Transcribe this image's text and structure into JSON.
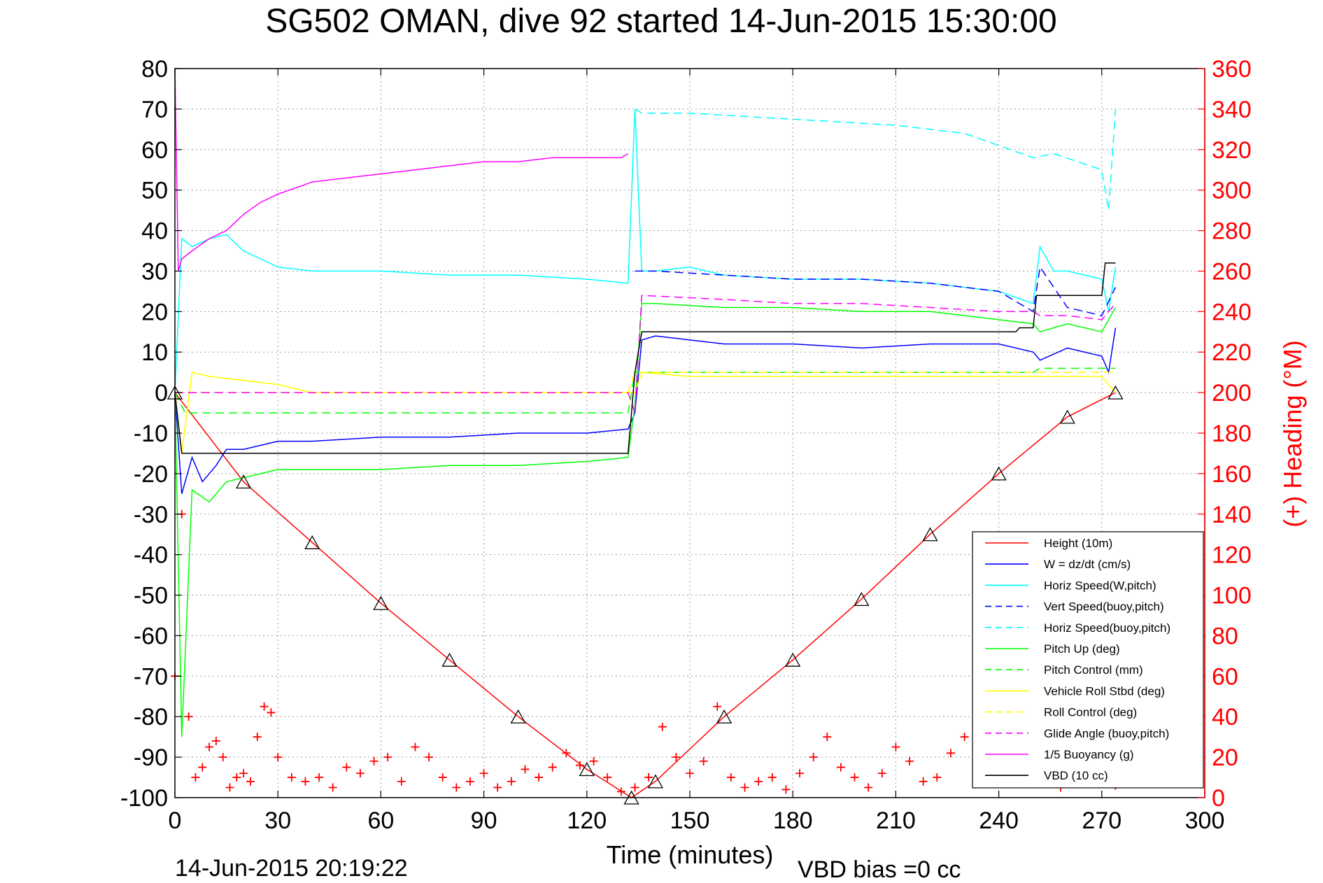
{
  "chart_data": {
    "type": "line",
    "title": "SG502 OMAN, dive 92 started 14-Jun-2015 15:30:00",
    "xlabel": "Time (minutes)",
    "ylabel": "",
    "y2label": "(+) Heading (°M)",
    "xlim": [
      0,
      300
    ],
    "ylim": [
      -100,
      80
    ],
    "y2lim": [
      0,
      360
    ],
    "xticks": [
      "0",
      "30",
      "60",
      "90",
      "120",
      "150",
      "180",
      "210",
      "240",
      "270",
      "300"
    ],
    "yticks": [
      "80",
      "70",
      "60",
      "50",
      "40",
      "30",
      "20",
      "10",
      "0",
      "-10",
      "-20",
      "-30",
      "-40",
      "-50",
      "-60",
      "-70",
      "-80",
      "-90",
      "-100"
    ],
    "y2ticks": [
      "360",
      "340",
      "320",
      "300",
      "280",
      "260",
      "240",
      "220",
      "200",
      "180",
      "160",
      "140",
      "120",
      "100",
      "80",
      "60",
      "40",
      "20",
      "0"
    ],
    "grid": true,
    "legend_position": "bottom-right",
    "footer_left": "14-Jun-2015 20:19:22",
    "footer_right": "VBD bias =0 cc",
    "series": [
      {
        "name": "Height (10m)",
        "color": "#ff0000",
        "style": "solid",
        "x": [
          0,
          20,
          40,
          60,
          80,
          100,
          120,
          133,
          140,
          160,
          180,
          200,
          220,
          240,
          260,
          274
        ],
        "y": [
          0,
          -22,
          -37,
          -52,
          -66,
          -80,
          -93,
          -100,
          -96,
          -80,
          -66,
          -51,
          -35,
          -20,
          -6,
          0
        ]
      },
      {
        "name": "W = dz/dt (cm/s)",
        "color": "#0000ff",
        "style": "solid",
        "x": [
          0,
          2,
          5,
          8,
          12,
          15,
          20,
          30,
          40,
          60,
          80,
          100,
          120,
          132,
          134,
          136,
          140,
          150,
          160,
          180,
          200,
          220,
          240,
          250,
          252,
          260,
          270,
          272,
          274
        ],
        "y": [
          0,
          -25,
          -16,
          -22,
          -18,
          -14,
          -14,
          -12,
          -12,
          -11,
          -11,
          -10,
          -10,
          -9,
          -5,
          13,
          14,
          13,
          12,
          12,
          11,
          12,
          12,
          10,
          8,
          11,
          9,
          5,
          16
        ]
      },
      {
        "name": "Horiz Speed(W,pitch)",
        "color": "#00ffff",
        "style": "solid",
        "x": [
          0,
          2,
          5,
          10,
          15,
          20,
          30,
          40,
          60,
          80,
          100,
          120,
          132,
          134,
          136,
          140,
          150,
          160,
          180,
          200,
          220,
          240,
          250,
          252,
          256,
          260,
          270,
          272,
          274
        ],
        "y": [
          0,
          38,
          36,
          38,
          39,
          35,
          31,
          30,
          30,
          29,
          29,
          28,
          27,
          70,
          30,
          30,
          31,
          29,
          28,
          28,
          27,
          25,
          22,
          36,
          30,
          30,
          28,
          20,
          31
        ]
      },
      {
        "name": "Vert Speed(buoy,pitch)",
        "color": "#0000ff",
        "style": "dashed",
        "x": [
          134,
          140,
          160,
          180,
          200,
          220,
          240,
          250,
          252,
          260,
          270,
          274
        ],
        "y": [
          30,
          30,
          29,
          28,
          28,
          27,
          25,
          20,
          31,
          21,
          19,
          26
        ]
      },
      {
        "name": "Horiz Speed(buoy,pitch)",
        "color": "#00ffff",
        "style": "dashed",
        "x": [
          134,
          136,
          150,
          170,
          190,
          210,
          230,
          240,
          250,
          256,
          270,
          272,
          274
        ],
        "y": [
          70,
          69,
          69,
          68,
          67,
          66,
          64,
          61,
          58,
          59,
          55,
          45,
          70
        ]
      },
      {
        "name": "Pitch Up (deg)",
        "color": "#00ff00",
        "style": "solid",
        "x": [
          0,
          2,
          5,
          10,
          15,
          20,
          30,
          40,
          60,
          80,
          100,
          120,
          132,
          134,
          136,
          140,
          160,
          180,
          200,
          220,
          240,
          250,
          252,
          260,
          270,
          274
        ],
        "y": [
          0,
          -85,
          -24,
          -27,
          -22,
          -21,
          -19,
          -19,
          -19,
          -18,
          -18,
          -17,
          -16,
          -3,
          22,
          22,
          21,
          21,
          20,
          20,
          18,
          17,
          15,
          17,
          15,
          21
        ]
      },
      {
        "name": "Pitch Control (mm)",
        "color": "#00ff00",
        "style": "dashed",
        "x": [
          0,
          3,
          132,
          134,
          250,
          252,
          274
        ],
        "y": [
          0,
          -5,
          -5,
          5,
          5,
          6,
          6
        ]
      },
      {
        "name": "Vehicle Roll Stbd (deg)",
        "color": "#ffff00",
        "style": "solid",
        "x": [
          0,
          2,
          5,
          10,
          20,
          30,
          40,
          60,
          80,
          100,
          120,
          132,
          134,
          136,
          150,
          170,
          190,
          210,
          230,
          250,
          270,
          274
        ],
        "y": [
          0,
          -15,
          5,
          4,
          3,
          2,
          0,
          0,
          0,
          0,
          0,
          0,
          0,
          5,
          4,
          4,
          4,
          4,
          4,
          4,
          4,
          0
        ]
      },
      {
        "name": "Roll Control (deg)",
        "color": "#ffff00",
        "style": "dashed",
        "x": [
          0,
          3,
          132,
          134,
          274
        ],
        "y": [
          0,
          0,
          0,
          5,
          5
        ]
      },
      {
        "name": "Glide Angle (buoy,pitch)",
        "color": "#ff00ff",
        "style": "dashed",
        "x": [
          0,
          132,
          134,
          136,
          160,
          180,
          200,
          220,
          240,
          250,
          252,
          260,
          270,
          274
        ],
        "y": [
          0,
          0,
          -5,
          24,
          23,
          22,
          22,
          21,
          20,
          20,
          19,
          19,
          18,
          22
        ]
      },
      {
        "name": "1/5 Buoyancy (g)",
        "color": "#ff00ff",
        "style": "solid",
        "x": [
          0,
          1,
          2,
          5,
          10,
          15,
          20,
          25,
          30,
          40,
          50,
          60,
          70,
          80,
          90,
          100,
          110,
          120,
          130,
          132
        ],
        "y": [
          80,
          30,
          33,
          35,
          38,
          40,
          44,
          47,
          49,
          52,
          53,
          54,
          55,
          56,
          57,
          57,
          58,
          58,
          58,
          59
        ]
      },
      {
        "name": "VBD (10 cc)",
        "color": "#000000",
        "style": "solid",
        "x": [
          0,
          2,
          132,
          134,
          136,
          245,
          246,
          250,
          251,
          270,
          271,
          274
        ],
        "y": [
          0,
          -15,
          -15,
          5,
          15,
          15,
          16,
          16,
          24,
          24,
          32,
          32
        ]
      }
    ],
    "heading": {
      "name": "(+) Heading",
      "color": "#ff0000",
      "marker": "+",
      "axis": "right",
      "x": [
        0,
        2,
        4,
        6,
        8,
        10,
        12,
        14,
        16,
        18,
        20,
        22,
        24,
        26,
        28,
        30,
        34,
        38,
        42,
        46,
        50,
        54,
        58,
        62,
        66,
        70,
        74,
        78,
        82,
        86,
        90,
        94,
        98,
        102,
        106,
        110,
        114,
        118,
        122,
        126,
        130,
        134,
        138,
        142,
        146,
        150,
        154,
        158,
        162,
        166,
        170,
        174,
        178,
        182,
        186,
        190,
        194,
        198,
        202,
        206,
        210,
        214,
        218,
        222,
        226,
        230,
        234,
        238,
        242,
        246,
        250,
        254,
        258,
        262,
        266,
        270,
        274
      ],
      "y": [
        60,
        140,
        40,
        10,
        15,
        25,
        28,
        20,
        5,
        10,
        12,
        8,
        30,
        45,
        42,
        20,
        10,
        8,
        10,
        5,
        15,
        12,
        18,
        20,
        8,
        25,
        20,
        10,
        5,
        8,
        12,
        5,
        8,
        14,
        10,
        15,
        22,
        16,
        18,
        10,
        3,
        5,
        10,
        35,
        20,
        12,
        18,
        45,
        10,
        5,
        8,
        10,
        4,
        12,
        20,
        30,
        15,
        10,
        5,
        12,
        25,
        18,
        8,
        10,
        22,
        30,
        12,
        35,
        20,
        10,
        8,
        12,
        5,
        10,
        18,
        8,
        6
      ]
    },
    "annotations": [
      "triangle markers along Height trace"
    ]
  }
}
